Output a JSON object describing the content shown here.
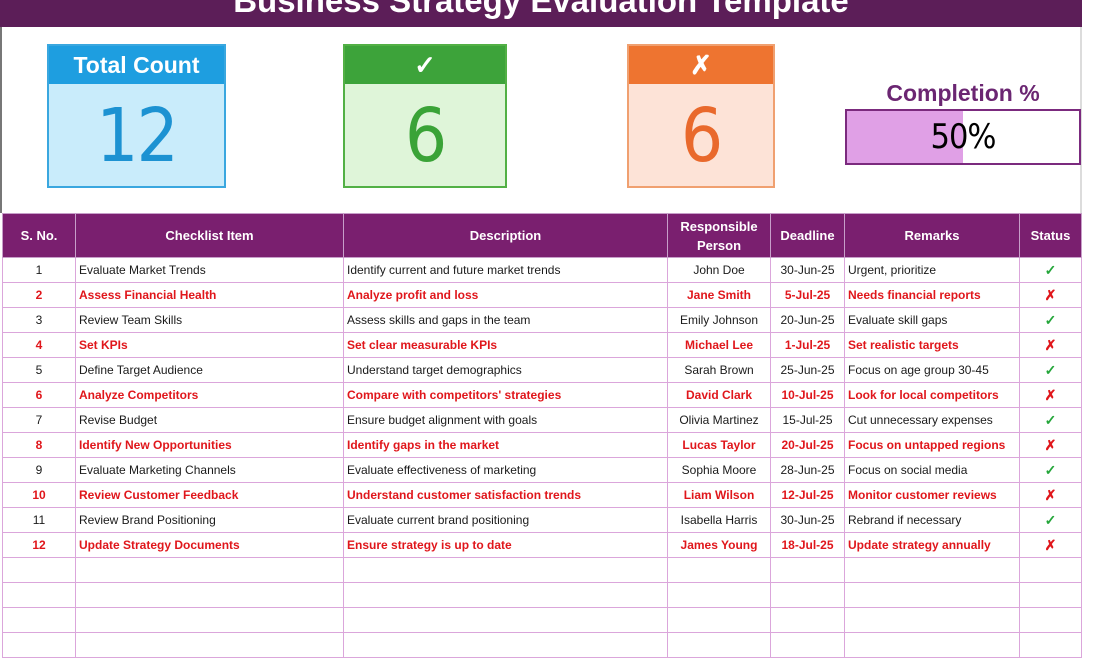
{
  "title": "Business Strategy Evaluation Template",
  "cards": {
    "total": {
      "label": "Total Count",
      "value": "12"
    },
    "done": {
      "label": "✓",
      "value": "6"
    },
    "pending": {
      "label": "✗",
      "value": "6"
    }
  },
  "completion": {
    "label": "Completion %",
    "text": "50%",
    "fraction": 0.5
  },
  "table": {
    "headers": [
      "S. No.",
      "Checklist Item",
      "Description",
      "Responsible Person",
      "Deadline",
      "Remarks",
      "Status"
    ],
    "rows": [
      {
        "no": "1",
        "item": "Evaluate Market Trends",
        "desc": "Identify current and future market trends",
        "person": "John Doe",
        "deadline": "30-Jun-25",
        "remarks": "Urgent, prioritize",
        "status": "✓"
      },
      {
        "no": "2",
        "item": "Assess Financial Health",
        "desc": "Analyze profit and loss",
        "person": "Jane Smith",
        "deadline": "5-Jul-25",
        "remarks": "Needs financial reports",
        "status": "✗"
      },
      {
        "no": "3",
        "item": "Review Team Skills",
        "desc": "Assess skills and gaps in the team",
        "person": "Emily Johnson",
        "deadline": "20-Jun-25",
        "remarks": "Evaluate skill gaps",
        "status": "✓"
      },
      {
        "no": "4",
        "item": "Set KPIs",
        "desc": "Set clear measurable KPIs",
        "person": "Michael Lee",
        "deadline": "1-Jul-25",
        "remarks": "Set realistic targets",
        "status": "✗"
      },
      {
        "no": "5",
        "item": "Define Target Audience",
        "desc": "Understand target demographics",
        "person": "Sarah Brown",
        "deadline": "25-Jun-25",
        "remarks": "Focus on age group 30-45",
        "status": "✓"
      },
      {
        "no": "6",
        "item": "Analyze Competitors",
        "desc": "Compare with competitors' strategies",
        "person": "David Clark",
        "deadline": "10-Jul-25",
        "remarks": "Look for local competitors",
        "status": "✗"
      },
      {
        "no": "7",
        "item": "Revise Budget",
        "desc": "Ensure budget alignment with goals",
        "person": "Olivia Martinez",
        "deadline": "15-Jul-25",
        "remarks": "Cut unnecessary expenses",
        "status": "✓"
      },
      {
        "no": "8",
        "item": "Identify New Opportunities",
        "desc": "Identify gaps in the market",
        "person": "Lucas Taylor",
        "deadline": "20-Jul-25",
        "remarks": "Focus on untapped regions",
        "status": "✗"
      },
      {
        "no": "9",
        "item": "Evaluate Marketing Channels",
        "desc": "Evaluate effectiveness of marketing",
        "person": "Sophia Moore",
        "deadline": "28-Jun-25",
        "remarks": "Focus on social media",
        "status": "✓"
      },
      {
        "no": "10",
        "item": "Review Customer Feedback",
        "desc": "Understand customer satisfaction trends",
        "person": "Liam Wilson",
        "deadline": "12-Jul-25",
        "remarks": "Monitor customer reviews",
        "status": "✗"
      },
      {
        "no": "11",
        "item": "Review Brand Positioning",
        "desc": "Evaluate current brand positioning",
        "person": "Isabella Harris",
        "deadline": "30-Jun-25",
        "remarks": "Rebrand if necessary",
        "status": "✓"
      },
      {
        "no": "12",
        "item": "Update Strategy Documents",
        "desc": "Ensure strategy is up to date",
        "person": "James Young",
        "deadline": "18-Jul-25",
        "remarks": "Update strategy annually",
        "status": "✗"
      }
    ]
  }
}
